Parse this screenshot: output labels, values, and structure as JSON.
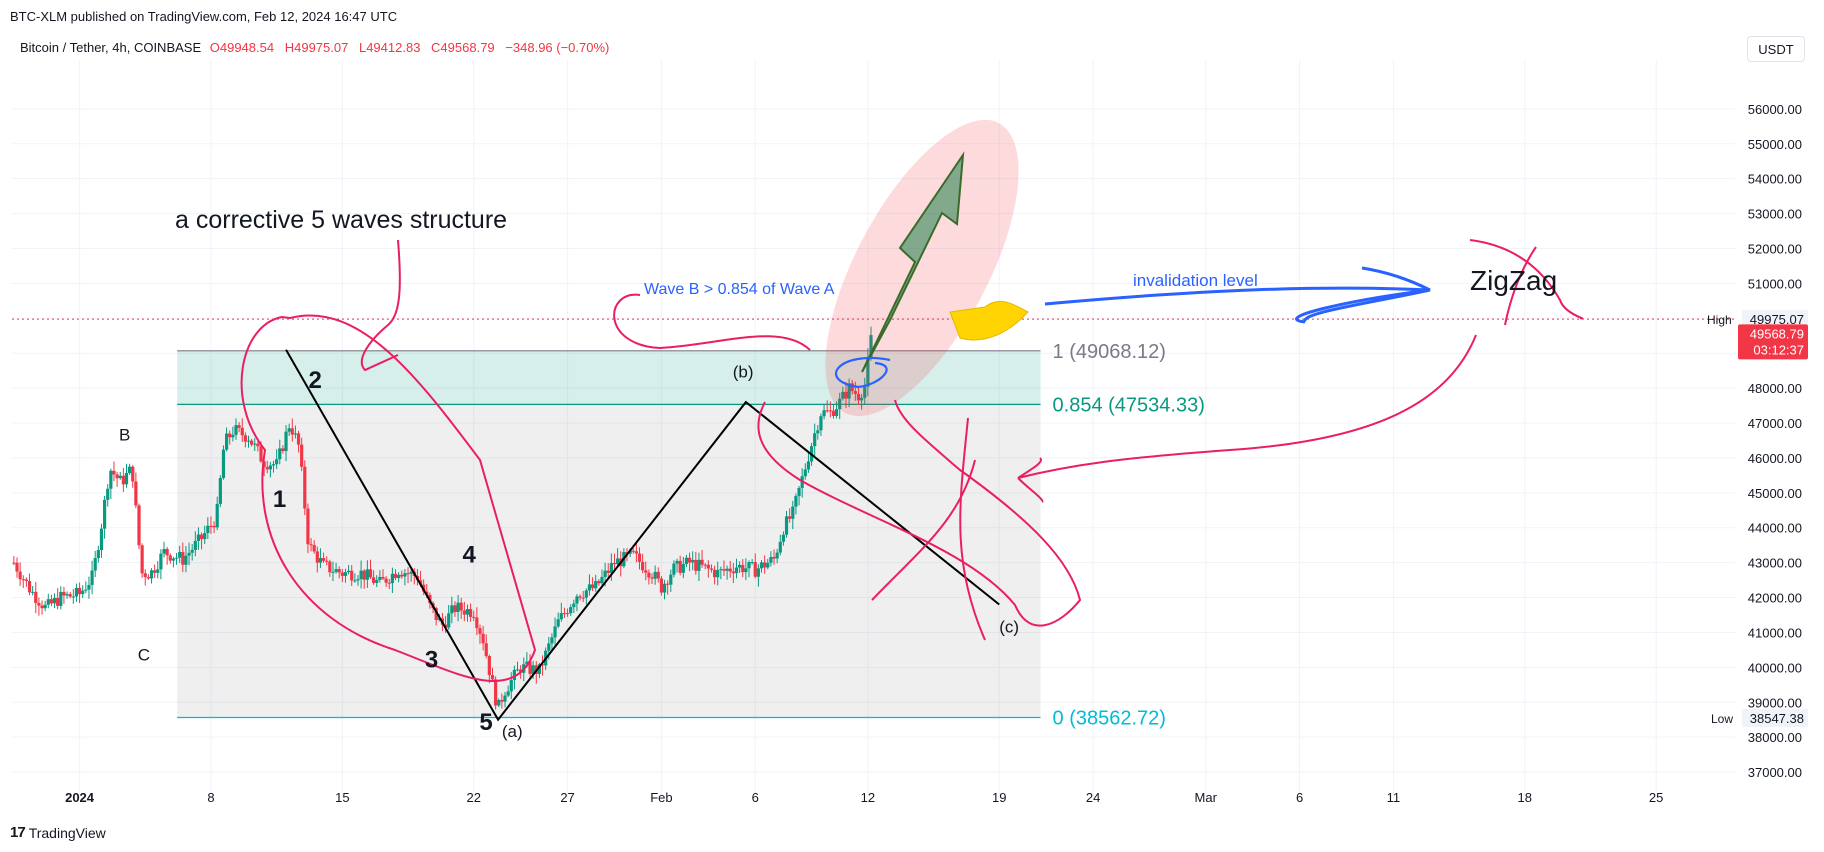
{
  "header": {
    "published": "BTC-XLM published on TradingView.com, Feb 12, 2024 16:47 UTC",
    "symbol": "Bitcoin / Tether, 4h, COINBASE",
    "ohlc": {
      "o": "O49948.54",
      "h": "H49975.07",
      "l": "L49412.83",
      "c": "C49568.79",
      "chg": "−348.96 (−0.70%)"
    },
    "currency": "USDT"
  },
  "footer": {
    "brand": "TradingView",
    "logo_icon": "tradingview-logo-icon"
  },
  "colors": {
    "up": "#089981",
    "down": "#f23645",
    "fib_teal": "#089981",
    "fib_cyan": "#00bcd4",
    "fib_grey": "#787b86",
    "ink": "#e91e63",
    "blue_ink": "#2962ff"
  },
  "chart_data": {
    "type": "candlestick",
    "ylim": [
      36200,
      57400
    ],
    "y_ticks": [
      "37000.00",
      "38000.00",
      "39000.00",
      "40000.00",
      "41000.00",
      "42000.00",
      "43000.00",
      "44000.00",
      "45000.00",
      "46000.00",
      "47000.00",
      "48000.00",
      "49000.00",
      "50000.00",
      "51000.00",
      "52000.00",
      "53000.00",
      "54000.00",
      "55000.00",
      "56000.00"
    ],
    "x_ticks": [
      {
        "label": "2024",
        "day": 0,
        "bold": true
      },
      {
        "label": "8",
        "day": 7
      },
      {
        "label": "15",
        "day": 14
      },
      {
        "label": "22",
        "day": 21
      },
      {
        "label": "27",
        "day": 26
      },
      {
        "label": "Feb",
        "day": 31
      },
      {
        "label": "6",
        "day": 36
      },
      {
        "label": "12",
        "day": 42
      },
      {
        "label": "19",
        "day": 49
      },
      {
        "label": "24",
        "day": 54
      },
      {
        "label": "Mar",
        "day": 60
      },
      {
        "label": "6",
        "day": 65
      },
      {
        "label": "11",
        "day": 70
      },
      {
        "label": "18",
        "day": 77
      },
      {
        "label": "25",
        "day": 84
      }
    ],
    "x_domain": [
      -3.6,
      88.2
    ],
    "price_path": [
      [
        -3.5,
        43000
      ],
      [
        -2.6,
        42200
      ],
      [
        -1.8,
        41700
      ],
      [
        -1,
        42000
      ],
      [
        0,
        42100
      ],
      [
        0.7,
        42600
      ],
      [
        1.2,
        44200
      ],
      [
        1.6,
        45700
      ],
      [
        2.2,
        45300
      ],
      [
        2.8,
        45700
      ],
      [
        3.3,
        42700
      ],
      [
        3.8,
        42700
      ],
      [
        4.5,
        43300
      ],
      [
        5.5,
        43100
      ],
      [
        6.5,
        43700
      ],
      [
        7.3,
        44300
      ],
      [
        7.7,
        46400
      ],
      [
        8.2,
        46800
      ],
      [
        9,
        46600
      ],
      [
        9.8,
        45900
      ],
      [
        10.5,
        45800
      ],
      [
        11.2,
        47000
      ],
      [
        11.7,
        46300
      ],
      [
        12.2,
        43500
      ],
      [
        13,
        42900
      ],
      [
        14,
        42700
      ],
      [
        15,
        42700
      ],
      [
        16,
        42400
      ],
      [
        17,
        42800
      ],
      [
        18,
        42600
      ],
      [
        18.7,
        41700
      ],
      [
        19.3,
        41200
      ],
      [
        20,
        41700
      ],
      [
        21,
        41600
      ],
      [
        21.5,
        40800
      ],
      [
        22,
        39500
      ],
      [
        22.3,
        38800
      ],
      [
        22.6,
        39300
      ],
      [
        23.5,
        40000
      ],
      [
        24.5,
        39900
      ],
      [
        25.5,
        41300
      ],
      [
        26.5,
        42100
      ],
      [
        27.5,
        42300
      ],
      [
        28.5,
        43000
      ],
      [
        29.5,
        43200
      ],
      [
        30.5,
        42700
      ],
      [
        31,
        42300
      ],
      [
        31.6,
        42800
      ],
      [
        32.5,
        43000
      ],
      [
        34,
        42700
      ],
      [
        35,
        42900
      ],
      [
        36,
        42800
      ],
      [
        37,
        43100
      ],
      [
        37.5,
        44000
      ],
      [
        38,
        44400
      ],
      [
        38.6,
        45600
      ],
      [
        39,
        46400
      ],
      [
        39.5,
        47300
      ],
      [
        40,
        47300
      ],
      [
        40.5,
        47600
      ],
      [
        41,
        48000
      ],
      [
        41.5,
        47800
      ],
      [
        41.9,
        48100
      ],
      [
        42.1,
        49300
      ],
      [
        42.3,
        49570
      ]
    ],
    "last_price": {
      "label": "49568.79",
      "value": 49568.79,
      "countdown": "03:12:37"
    },
    "high": {
      "label": "High",
      "value_label": "49975.07",
      "value": 49975.07
    },
    "low": {
      "label": "Low",
      "value_label": "38547.38",
      "value": 38547.38
    },
    "fib": {
      "day_start": 5.2,
      "day_end": 51.2,
      "levels": [
        {
          "label": "1 (49068.12)",
          "value": 49068.12
        },
        {
          "label": "0.854 (47534.33)",
          "value": 47534.33
        },
        {
          "label": "0 (38562.72)",
          "value": 38562.72
        }
      ]
    },
    "wave_lines": [
      {
        "points": [
          [
            11,
            49100
          ],
          [
            22.3,
            38500
          ],
          [
            35.5,
            47600
          ],
          [
            49,
            41800
          ]
        ]
      }
    ],
    "wave_labels": [
      {
        "text": "B",
        "day": 2.1,
        "y": 46500,
        "bold": false
      },
      {
        "text": "C",
        "day": 3.1,
        "y": 40200,
        "bold": false
      },
      {
        "text": "1",
        "day": 10.3,
        "y": 44600,
        "bold": true
      },
      {
        "text": "2",
        "day": 12.2,
        "y": 48000,
        "bold": true
      },
      {
        "text": "3",
        "day": 18.4,
        "y": 40000,
        "bold": true
      },
      {
        "text": "4",
        "day": 20.4,
        "y": 43000,
        "bold": true
      },
      {
        "text": "5",
        "day": 21.3,
        "y": 38200,
        "bold": true
      },
      {
        "text": "(a)",
        "day": 22.5,
        "y": 38000,
        "bold": false
      },
      {
        "text": "(b)",
        "day": 34.8,
        "y": 48300,
        "bold": false
      },
      {
        "text": "(c)",
        "day": 49,
        "y": 41000,
        "bold": false
      }
    ],
    "annotations": {
      "structure": "a corrective 5 waves structure",
      "wave_b": "Wave B > 0.854 of Wave A",
      "invalidation": "invalidation level",
      "zigzag": "ZigZag"
    }
  }
}
